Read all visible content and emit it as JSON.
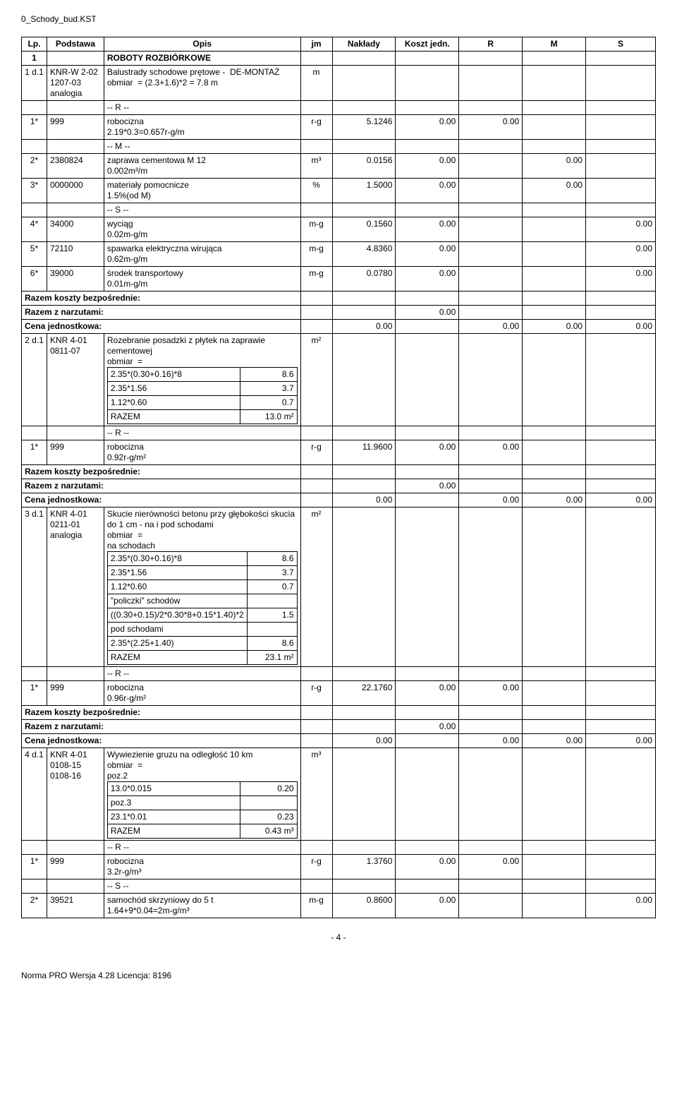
{
  "doc_header": "0_Schody_bud.KST",
  "page_number": "- 4 -",
  "footer_text": "Norma PRO Wersja 4.28 Licencja: 8196",
  "columns": [
    "Lp.",
    "Podstawa",
    "Opis",
    "jm",
    "Nakłady",
    "Koszt jedn.",
    "R",
    "M",
    "S"
  ],
  "section": {
    "lp": "1",
    "title": "ROBOTY ROZBIÓRKOWE"
  },
  "summary_labels": {
    "razem_bezp": "Razem koszty bezpośrednie:",
    "razem_narzut": "Razem z narzutami:",
    "cena_jedn": "Cena jednostkowa:",
    "cena_val": "0.00",
    "row_vals": [
      "0.00",
      "",
      "0.00",
      "0.00",
      "0.00"
    ]
  },
  "items": [
    {
      "lp": "1 d.1",
      "podstawa": "KNR-W 2-02 1207-03 analogia",
      "opis": "Balustrady schodowe prętowe -  DE-MONTAŻ\nobmiar  = (2.3+1.6)*2 = 7.8 m",
      "jm": "m",
      "resources": [
        {
          "code": "",
          "label": "-- R --"
        },
        {
          "code": "1* 999",
          "label": "robocizna\n2.19*0.3=0.657r-g/m",
          "jm": "r-g",
          "nak": "5.1246",
          "kj": "0.00",
          "r": "0.00",
          "m": "",
          "s": ""
        },
        {
          "code": "",
          "label": "-- M --"
        },
        {
          "code": "2* 2380824",
          "label": "zaprawa cementowa M 12\n0.002m³/m",
          "jm": "m³",
          "nak": "0.0156",
          "kj": "0.00",
          "r": "",
          "m": "0.00",
          "s": ""
        },
        {
          "code": "3* 0000000",
          "label": "materiały pomocnicze\n1.5%(od M)",
          "jm": "%",
          "nak": "1.5000",
          "kj": "0.00",
          "r": "",
          "m": "0.00",
          "s": ""
        },
        {
          "code": "",
          "label": "-- S --"
        },
        {
          "code": "4* 34000",
          "label": "wyciąg\n0.02m-g/m",
          "jm": "m-g",
          "nak": "0.1560",
          "kj": "0.00",
          "r": "",
          "m": "",
          "s": "0.00"
        },
        {
          "code": "5* 72110",
          "label": "spawarka elektryczna wirująca\n0.62m-g/m",
          "jm": "m-g",
          "nak": "4.8360",
          "kj": "0.00",
          "r": "",
          "m": "",
          "s": "0.00"
        },
        {
          "code": "6* 39000",
          "label": "środek transportowy\n0.01m-g/m",
          "jm": "m-g",
          "nak": "0.0780",
          "kj": "0.00",
          "r": "",
          "m": "",
          "s": "0.00"
        }
      ]
    },
    {
      "lp": "2 d.1",
      "podstawa": "KNR 4-01 0811-07",
      "opis": "Rozebranie posadzki z płytek na zaprawie cementowej\nobmiar  =",
      "calc": [
        [
          "2.35*(0.30+0.16)*8",
          "8.6"
        ],
        [
          "2.35*1.56",
          "3.7"
        ],
        [
          "1.12*0.60",
          "0.7"
        ],
        [
          "RAZEM",
          "13.0 m²"
        ]
      ],
      "jm": "m²",
      "resources": [
        {
          "code": "",
          "label": "-- R --"
        },
        {
          "code": "1* 999",
          "label": "robocizna\n0.92r-g/m²",
          "jm": "r-g",
          "nak": "11.9600",
          "kj": "0.00",
          "r": "0.00",
          "m": "",
          "s": ""
        }
      ]
    },
    {
      "lp": "3 d.1",
      "podstawa": "KNR 4-01 0211-01 analogia",
      "opis": "Skucie nierówności betonu przy głębokości skucia do 1 cm - na i pod schodami\nobmiar  =\nna schodach",
      "calc": [
        [
          "2.35*(0.30+0.16)*8",
          "8.6"
        ],
        [
          "2.35*1.56",
          "3.7"
        ],
        [
          "1.12*0.60",
          "0.7"
        ],
        [
          "\"policzki\" schodów",
          ""
        ],
        [
          "((0.30+0.15)/2*0.30*8+0.15*1.40)*2",
          "1.5"
        ],
        [
          "pod schodami",
          ""
        ],
        [
          "2.35*(2.25+1.40)",
          "8.6"
        ],
        [
          "RAZEM",
          "23.1 m²"
        ]
      ],
      "jm": "m²",
      "resources": [
        {
          "code": "",
          "label": "-- R --"
        },
        {
          "code": "1* 999",
          "label": "robocizna\n0.96r-g/m²",
          "jm": "r-g",
          "nak": "22.1760",
          "kj": "0.00",
          "r": "0.00",
          "m": "",
          "s": ""
        }
      ]
    },
    {
      "lp": "4 d.1",
      "podstawa": "KNR 4-01 0108-15 0108-16",
      "opis": "Wywiezienie gruzu na odległość 10 km\nobmiar  =\npoz.2",
      "calc": [
        [
          "13.0*0.015",
          "0.20"
        ],
        [
          "poz.3",
          ""
        ],
        [
          "23.1*0.01",
          "0.23"
        ],
        [
          "RAZEM",
          "0.43 m³"
        ]
      ],
      "jm": "m³",
      "resources": [
        {
          "code": "",
          "label": "-- R --"
        },
        {
          "code": "1* 999",
          "label": "robocizna\n3.2r-g/m³",
          "jm": "r-g",
          "nak": "1.3760",
          "kj": "0.00",
          "r": "0.00",
          "m": "",
          "s": ""
        },
        {
          "code": "",
          "label": "-- S --"
        },
        {
          "code": "2* 39521",
          "label": "samochód skrzyniowy do 5 t\n1.64+9*0.04=2m-g/m³",
          "jm": "m-g",
          "nak": "0.8600",
          "kj": "0.00",
          "r": "",
          "m": "",
          "s": "0.00"
        }
      ],
      "no_summary": true
    }
  ]
}
